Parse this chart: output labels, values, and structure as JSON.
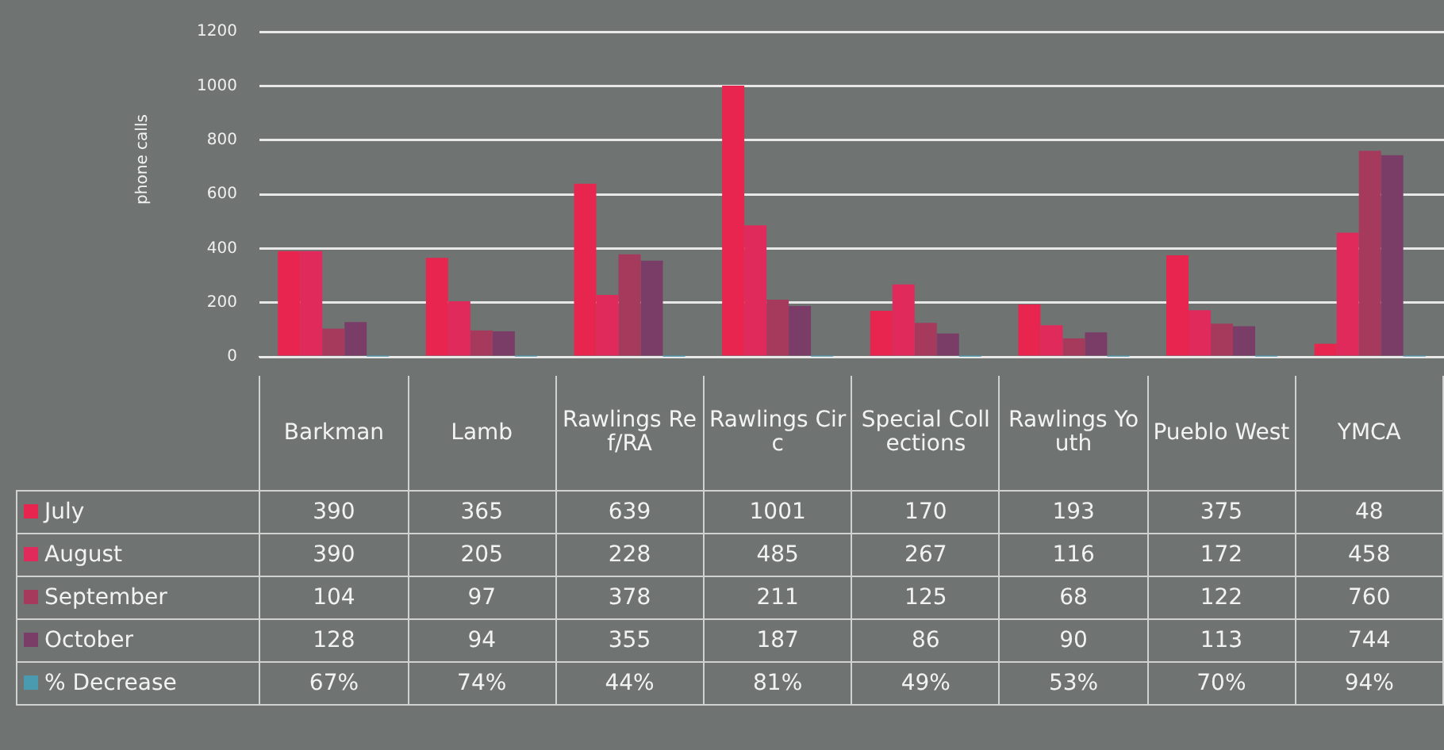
{
  "chart_data": {
    "type": "bar",
    "ylabel": "phone calls",
    "categories": [
      "Barkman",
      "Lamb",
      "Rawlings Ref/RA",
      "Rawlings Circ",
      "Special Collections",
      "Rawlings Youth",
      "Pueblo West",
      "YMCA"
    ],
    "series": [
      {
        "name": "July",
        "color": "#e8254f",
        "values": [
          390,
          365,
          639,
          1001,
          170,
          193,
          375,
          48
        ],
        "value_labels": [
          "390",
          "365",
          "639",
          "1001",
          "170",
          "193",
          "375",
          "48"
        ]
      },
      {
        "name": "August",
        "color": "#e02a5c",
        "values": [
          390,
          205,
          228,
          485,
          267,
          116,
          172,
          458
        ],
        "value_labels": [
          "390",
          "205",
          "228",
          "485",
          "267",
          "116",
          "172",
          "458"
        ]
      },
      {
        "name": "September",
        "color": "#a63a5c",
        "values": [
          104,
          97,
          378,
          211,
          125,
          68,
          122,
          760
        ],
        "value_labels": [
          "104",
          "97",
          "378",
          "211",
          "125",
          "68",
          "122",
          "760"
        ]
      },
      {
        "name": "October",
        "color": "#7a3d68",
        "values": [
          128,
          94,
          355,
          187,
          86,
          90,
          113,
          744
        ],
        "value_labels": [
          "128",
          "94",
          "355",
          "187",
          "86",
          "90",
          "113",
          "744"
        ]
      },
      {
        "name": "% Decrease",
        "color": "#4a9ab0",
        "values": [
          0.67,
          0.74,
          0.44,
          0.81,
          0.49,
          0.53,
          0.7,
          0.94
        ],
        "value_labels": [
          "67%",
          "74%",
          "44%",
          "81%",
          "49%",
          "53%",
          "70%",
          "94%"
        ]
      }
    ],
    "ylim": [
      0,
      1200
    ],
    "yticks": [
      0,
      200,
      400,
      600,
      800,
      1000,
      1200
    ],
    "grid": "y",
    "legend": "bottom"
  }
}
